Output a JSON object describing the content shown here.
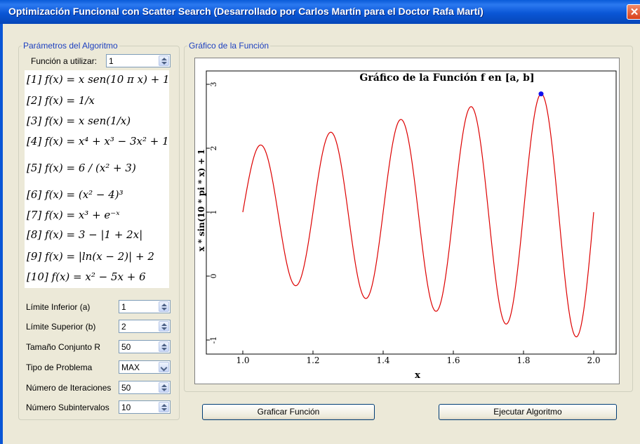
{
  "window": {
    "title": "Optimización Funcional con Scatter Search (Desarrollado por Carlos Martín para el Doctor Rafa Martí)",
    "close_symbol": "✕"
  },
  "params": {
    "legend": "Parámetros del Algoritmo",
    "function_label": "Función a utilizar:",
    "function_value": "1",
    "formulas": [
      "[1] f(x) = x sen(10 π x) + 1",
      "[2] f(x) = 1/x",
      "[3] f(x) = x sen(1/x)",
      "[4] f(x) = x⁴ + x³ − 3x² + 1",
      "[5] f(x) = 6 / (x² + 3)",
      "[6] f(x) = (x² − 4)³",
      "[7] f(x) = x³ + e⁻ˣ",
      "[8] f(x) = 3 − |1 + 2x|",
      "[9] f(x) = |ln(x − 2)| + 2",
      "[10] f(x) = x² − 5x + 6"
    ],
    "lower_label": "Límite Inferior (a)",
    "lower_value": "1",
    "upper_label": "Límite Superior (b)",
    "upper_value": "2",
    "r_label": "Tamaño Conjunto R",
    "r_value": "50",
    "type_label": "Tipo de Problema",
    "type_value": "MAX",
    "iter_label": "Número de Iteraciones",
    "iter_value": "50",
    "sub_label": "Número Subintervalos",
    "sub_value": "10"
  },
  "graph": {
    "legend": "Gráfico de la Función"
  },
  "buttons": {
    "plot": "Graficar Función",
    "run": "Ejecutar Algoritmo"
  },
  "chart_data": {
    "type": "line",
    "title": "Gráfico de la Función f en [a, b]",
    "xlabel": "x",
    "ylabel": "x * sin(10 * pi * x) + 1",
    "function": "x * sin(10 * pi * x) + 1",
    "xlim": [
      1.0,
      2.0
    ],
    "ylim": [
      -1,
      3
    ],
    "xticks": [
      "1.0",
      "1.2",
      "1.4",
      "1.6",
      "1.8",
      "2.0"
    ],
    "yticks": [
      "-1",
      "0",
      "1",
      "2",
      "3"
    ],
    "series": [
      {
        "color": "#dd0000",
        "x": [
          1.0,
          1.05,
          1.15,
          1.25,
          1.35,
          1.45,
          1.55,
          1.65,
          1.75,
          1.85,
          1.95,
          2.0
        ],
        "y": [
          1.0,
          2.05,
          -0.15,
          2.25,
          -0.35,
          2.45,
          -0.55,
          2.65,
          -0.75,
          2.85,
          -0.95,
          1.0
        ]
      }
    ],
    "max_point": {
      "x": 1.85,
      "y": 2.85,
      "color": "#1010ee"
    }
  }
}
